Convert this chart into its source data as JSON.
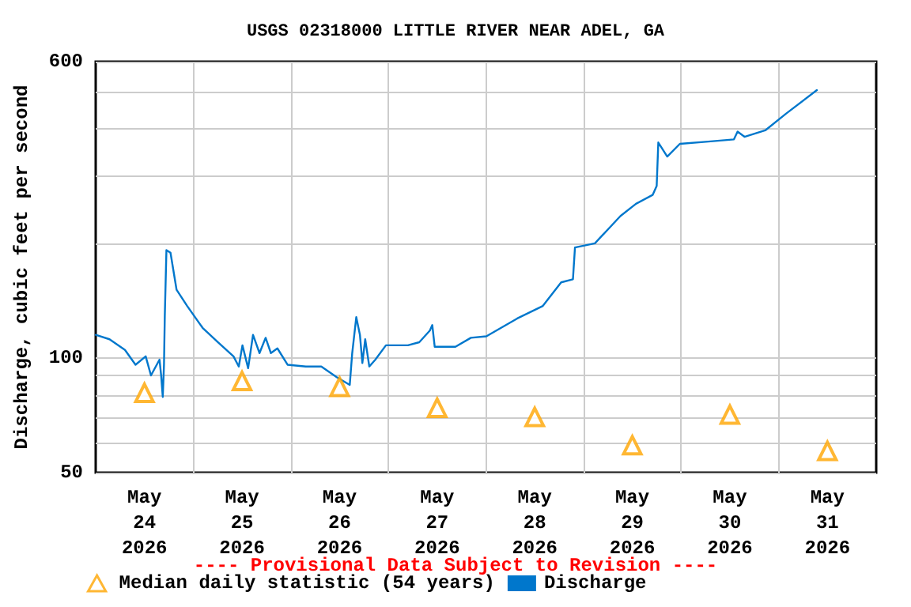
{
  "chart_data": {
    "type": "line",
    "title": "USGS 02318000 LITTLE RIVER NEAR ADEL, GA",
    "ylabel": "Discharge, cubic feet per second",
    "annotations": [
      "---- Provisional Data Subject to Revision ----"
    ],
    "xlim": [
      "2026-05-24T00:00",
      "2026-06-01T00:00"
    ],
    "xticks": [
      {
        "value": "2026-05-24T12:00",
        "label": "May\n24\n2026"
      },
      {
        "value": "2026-05-25T12:00",
        "label": "May\n25\n2026"
      },
      {
        "value": "2026-05-26T12:00",
        "label": "May\n26\n2026"
      },
      {
        "value": "2026-05-27T12:00",
        "label": "May\n27\n2026"
      },
      {
        "value": "2026-05-28T12:00",
        "label": "May\n28\n2026"
      },
      {
        "value": "2026-05-29T12:00",
        "label": "May\n29\n2026"
      },
      {
        "value": "2026-05-30T12:00",
        "label": "May\n30\n2026"
      },
      {
        "value": "2026-05-31T12:00",
        "label": "May\n31\n2026"
      },
      {
        "value": "2026-05-25T00:00",
        "label": null
      },
      {
        "value": "2026-05-26T00:00",
        "label": null
      },
      {
        "value": "2026-05-27T00:00",
        "label": null
      },
      {
        "value": "2026-05-28T00:00",
        "label": null
      },
      {
        "value": "2026-05-29T00:00",
        "label": null
      },
      {
        "value": "2026-05-30T00:00",
        "label": null
      },
      {
        "value": "2026-05-31T00:00",
        "label": null
      }
    ],
    "ylim": [
      50,
      600
    ],
    "yticks": [
      50,
      {
        "value": 60,
        "label": null
      },
      {
        "value": 70,
        "label": null
      },
      {
        "value": 80,
        "label": null
      },
      {
        "value": 90,
        "label": null
      },
      100,
      {
        "value": 200,
        "label": null
      },
      {
        "value": 300,
        "label": null
      },
      {
        "value": 400,
        "label": null
      },
      {
        "value": 500,
        "label": null
      },
      600
    ],
    "log": "y",
    "grid": true,
    "legend": "bottom",
    "series": [
      {
        "name": "Median daily statistic (54 years)",
        "type": "scatter",
        "marker": "triangle",
        "color": "#ffa500",
        "x": [
          "2026-05-24T12:00",
          "2026-05-25T12:00",
          "2026-05-26T12:00",
          "2026-05-27T12:00",
          "2026-05-28T12:00",
          "2026-05-29T12:00",
          "2026-05-30T12:00",
          "2026-05-31T12:00"
        ],
        "values": [
          81,
          87,
          84,
          74,
          70,
          59,
          71,
          57
        ]
      },
      {
        "name": "Discharge",
        "type": "line",
        "color": "#0077cc",
        "x": [
          "2026-05-24T00:00",
          "2026-05-24T03:24",
          "2026-05-24T07:12",
          "2026-05-24T09:48",
          "2026-05-24T12:18",
          "2026-05-24T13:36",
          "2026-05-24T15:42",
          "2026-05-24T16:06",
          "2026-05-24T16:30",
          "2026-05-24T16:48",
          "2026-05-24T17:00",
          "2026-05-24T17:24",
          "2026-05-24T18:24",
          "2026-05-24T19:54",
          "2026-05-24T22:30",
          "2026-05-25T02:18",
          "2026-05-25T06:06",
          "2026-05-25T09:54",
          "2026-05-25T11:12",
          "2026-05-25T12:06",
          "2026-05-25T13:30",
          "2026-05-25T14:42",
          "2026-05-25T16:18",
          "2026-05-25T17:48",
          "2026-05-25T19:06",
          "2026-05-25T20:42",
          "2026-05-25T23:12",
          "2026-05-26T03:42",
          "2026-05-26T07:30",
          "2026-05-26T11:18",
          "2026-05-26T14:30",
          "2026-05-26T15:06",
          "2026-05-26T16:06",
          "2026-05-26T17:00",
          "2026-05-26T17:36",
          "2026-05-26T18:18",
          "2026-05-26T19:18",
          "2026-05-26T20:48",
          "2026-05-26T23:24",
          "2026-05-27T04:48",
          "2026-05-27T07:36",
          "2026-05-27T10:12",
          "2026-05-27T10:48",
          "2026-05-27T11:24",
          "2026-05-27T16:30",
          "2026-05-27T20:18",
          "2026-05-28T00:06",
          "2026-05-28T07:42",
          "2026-05-28T14:00",
          "2026-05-28T18:30",
          "2026-05-28T21:24",
          "2026-05-28T21:54",
          "2026-05-29T02:48",
          "2026-05-29T09:06",
          "2026-05-29T12:54",
          "2026-05-29T17:00",
          "2026-05-29T18:00",
          "2026-05-29T18:24",
          "2026-05-29T20:36",
          "2026-05-29T23:42",
          "2026-05-30T06:42",
          "2026-05-30T13:00",
          "2026-05-30T13:54",
          "2026-05-30T15:36",
          "2026-05-30T20:42",
          "2026-05-31T01:48",
          "2026-05-31T09:24"
        ],
        "values": [
          115,
          112,
          105,
          96,
          101,
          90,
          99,
          90,
          79,
          96,
          129,
          192,
          189,
          151,
          137,
          120,
          110,
          101,
          95,
          108,
          94,
          115,
          103,
          113,
          103,
          106,
          96,
          95,
          95,
          89,
          85,
          103,
          128,
          115,
          97,
          112,
          95,
          99,
          108,
          108,
          110,
          118,
          122,
          107,
          107,
          113,
          114,
          127,
          137,
          158,
          161,
          195,
          200,
          236,
          254,
          268,
          283,
          368,
          338,
          365,
          370,
          375,
          393,
          381,
          396,
          438,
          505
        ]
      }
    ]
  }
}
